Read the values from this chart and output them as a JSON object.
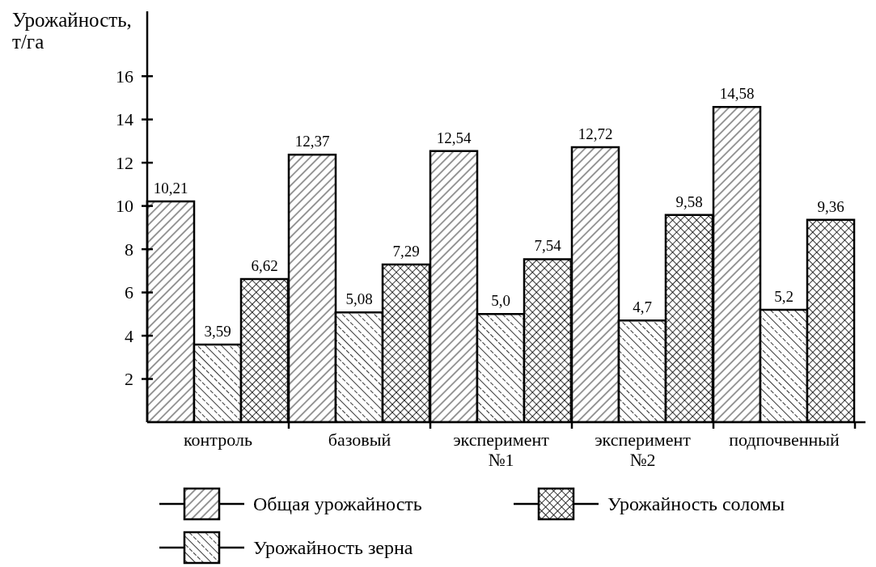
{
  "chart_data": {
    "type": "bar",
    "ylabel": "Урожайность, т/га",
    "categories": [
      "контроль",
      "базовый",
      "эксперимент №1",
      "эксперимент №2",
      "подпочвенный"
    ],
    "series": [
      {
        "name": "Общая урожайность",
        "color": "#000000",
        "values": [
          10.21,
          12.37,
          12.54,
          12.72,
          14.58
        ],
        "value_labels": [
          "10,21",
          "12,37",
          "12,54",
          "12,72",
          "14,58"
        ]
      },
      {
        "name": "Урожайность зерна",
        "color": "#000000",
        "values": [
          3.59,
          5.08,
          5.0,
          4.7,
          5.2
        ],
        "value_labels": [
          "3,59",
          "5,08",
          "5,0",
          "4,7",
          "5,2"
        ]
      },
      {
        "name": "Урожайность соломы",
        "color": "#000000",
        "values": [
          6.62,
          7.29,
          7.54,
          9.58,
          9.36
        ],
        "value_labels": [
          "6,62",
          "7,29",
          "7,54",
          "9,58",
          "9,36"
        ]
      }
    ],
    "ylim": [
      0,
      19
    ],
    "yticks": [
      2,
      4,
      6,
      8,
      10,
      12,
      14,
      16
    ],
    "legend": "bottom"
  }
}
